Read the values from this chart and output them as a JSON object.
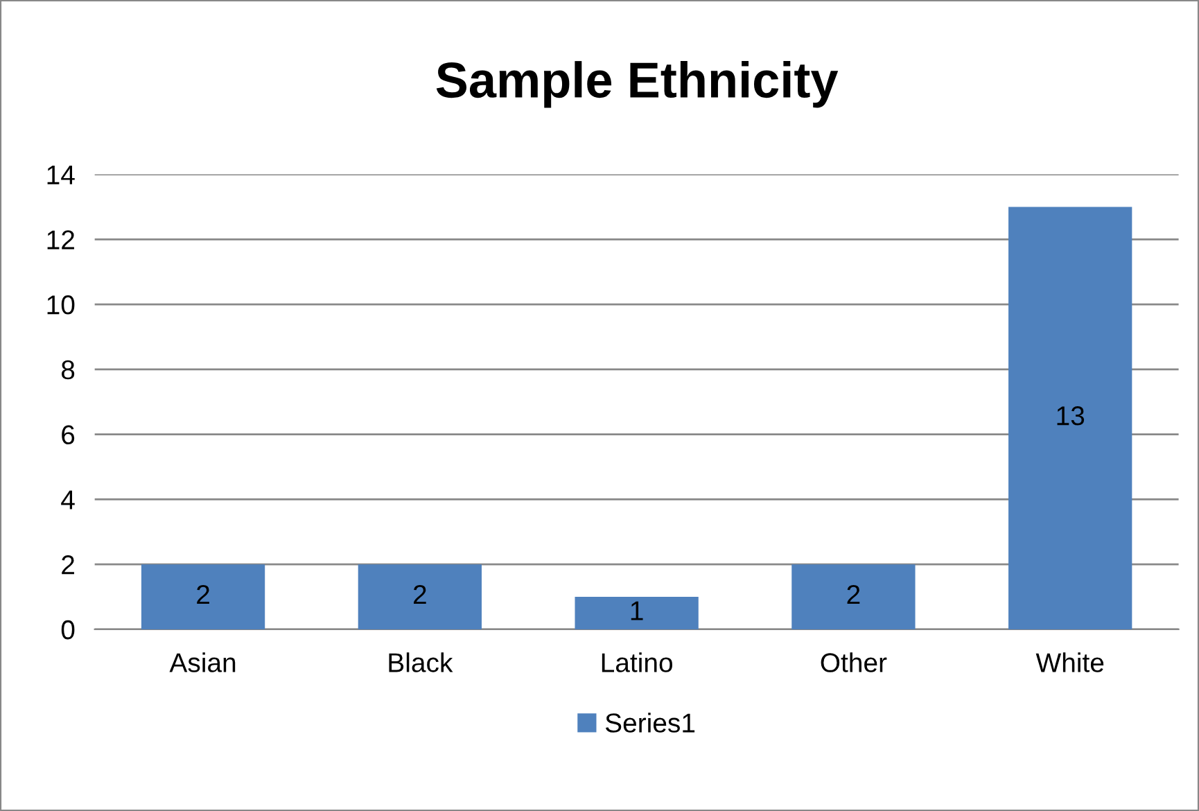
{
  "chart_data": {
    "type": "bar",
    "title": "Sample Ethnicity",
    "categories": [
      "Asian",
      "Black",
      "Latino",
      "Other",
      "White"
    ],
    "series": [
      {
        "name": "Series1",
        "color": "#4f81bd",
        "values": [
          2,
          2,
          1,
          2,
          13
        ]
      }
    ],
    "ylim": [
      0,
      14
    ],
    "yticks": [
      0,
      2,
      4,
      6,
      8,
      10,
      12,
      14
    ],
    "grid": "y",
    "legend": "bottom",
    "data_labels": true
  }
}
